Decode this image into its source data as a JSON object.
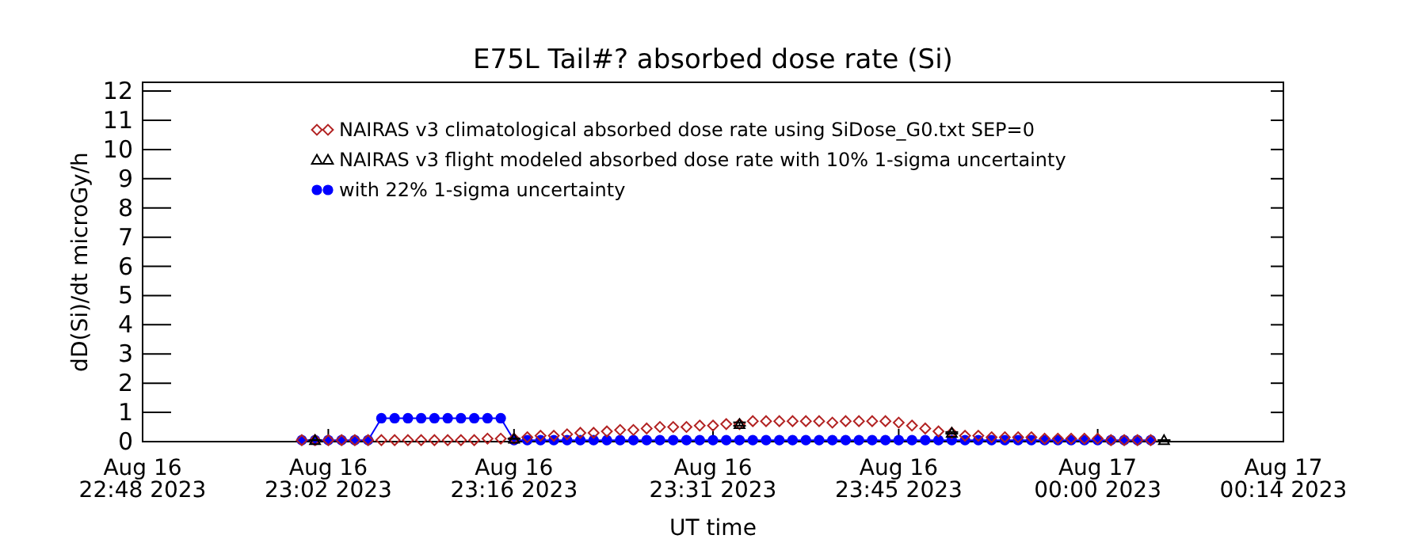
{
  "chart_data": {
    "type": "line",
    "title": "E75L Tail#? absorbed dose rate (Si)",
    "xlabel": "UT time",
    "ylabel": "dD(Si)/dt microGy/h",
    "x": [
      "2023-08-16T23:00",
      "2023-08-16T23:01",
      "2023-08-16T23:02",
      "2023-08-16T23:03",
      "2023-08-16T23:04",
      "2023-08-16T23:05",
      "2023-08-16T23:06",
      "2023-08-16T23:07",
      "2023-08-16T23:08",
      "2023-08-16T23:09",
      "2023-08-16T23:10",
      "2023-08-16T23:11",
      "2023-08-16T23:12",
      "2023-08-16T23:13",
      "2023-08-16T23:14",
      "2023-08-16T23:15",
      "2023-08-16T23:16",
      "2023-08-16T23:17",
      "2023-08-16T23:18",
      "2023-08-16T23:19",
      "2023-08-16T23:20",
      "2023-08-16T23:21",
      "2023-08-16T23:22",
      "2023-08-16T23:23",
      "2023-08-16T23:24",
      "2023-08-16T23:25",
      "2023-08-16T23:26",
      "2023-08-16T23:27",
      "2023-08-16T23:28",
      "2023-08-16T23:29",
      "2023-08-16T23:30",
      "2023-08-16T23:31",
      "2023-08-16T23:32",
      "2023-08-16T23:33",
      "2023-08-16T23:34",
      "2023-08-16T23:35",
      "2023-08-16T23:36",
      "2023-08-16T23:37",
      "2023-08-16T23:38",
      "2023-08-16T23:39",
      "2023-08-16T23:40",
      "2023-08-16T23:41",
      "2023-08-16T23:42",
      "2023-08-16T23:43",
      "2023-08-16T23:44",
      "2023-08-16T23:45",
      "2023-08-16T23:46",
      "2023-08-16T23:47",
      "2023-08-16T23:48",
      "2023-08-16T23:49",
      "2023-08-16T23:50",
      "2023-08-16T23:51",
      "2023-08-16T23:52",
      "2023-08-16T23:53",
      "2023-08-16T23:54",
      "2023-08-16T23:55",
      "2023-08-16T23:56",
      "2023-08-16T23:57",
      "2023-08-16T23:58",
      "2023-08-16T23:59",
      "2023-08-17T00:00",
      "2023-08-17T00:01",
      "2023-08-17T00:02",
      "2023-08-17T00:03",
      "2023-08-17T00:04"
    ],
    "xlim": [
      "2023-08-16T22:48",
      "2023-08-17T00:14"
    ],
    "xticks": [
      {
        "value": "2023-08-16T22:48",
        "label": "Aug 16\n22:48 2023"
      },
      {
        "value": "2023-08-16T23:02",
        "label": "Aug 16\n23:02 2023"
      },
      {
        "value": "2023-08-16T23:16",
        "label": "Aug 16\n23:16 2023"
      },
      {
        "value": "2023-08-16T23:31",
        "label": "Aug 16\n23:31 2023"
      },
      {
        "value": "2023-08-16T23:45",
        "label": "Aug 16\n23:45 2023"
      },
      {
        "value": "2023-08-17T00:00",
        "label": "Aug 17\n00:00 2023"
      },
      {
        "value": "2023-08-17T00:14",
        "label": "Aug 17\n00:14 2023"
      }
    ],
    "ylim": [
      0,
      12.3
    ],
    "yticks": [
      0,
      1,
      2,
      3,
      4,
      5,
      6,
      7,
      8,
      9,
      10,
      11,
      12
    ],
    "legend": "top",
    "series": [
      {
        "name": "NAIRAS v3 climatological absorbed dose rate using SiDose_G0.txt SEP=0",
        "type": "scatter",
        "marker": "diamond",
        "color": "#b22222",
        "values": [
          0.05,
          0.05,
          0.05,
          0.05,
          0.05,
          0.05,
          0.05,
          0.05,
          0.05,
          0.05,
          0.05,
          0.05,
          0.05,
          0.05,
          0.1,
          0.1,
          0.1,
          0.15,
          0.2,
          0.2,
          0.25,
          0.3,
          0.3,
          0.35,
          0.4,
          0.4,
          0.45,
          0.5,
          0.5,
          0.5,
          0.55,
          0.55,
          0.6,
          0.6,
          0.7,
          0.7,
          0.7,
          0.7,
          0.7,
          0.7,
          0.65,
          0.7,
          0.7,
          0.7,
          0.7,
          0.65,
          0.55,
          0.45,
          0.35,
          0.3,
          0.2,
          0.2,
          0.15,
          0.15,
          0.15,
          0.15,
          0.1,
          0.1,
          0.1,
          0.1,
          0.1,
          0.05,
          0.05,
          0.05,
          0.05
        ]
      },
      {
        "name": "NAIRAS v3 flight modeled absorbed dose rate with 10% 1-sigma uncertainty",
        "type": "scatter",
        "marker": "triangle",
        "color": "#000000",
        "x": [
          "2023-08-16T23:01",
          "2023-08-16T23:16",
          "2023-08-16T23:33",
          "2023-08-16T23:49",
          "2023-08-17T00:05"
        ],
        "values": [
          0.05,
          0.1,
          0.6,
          0.3,
          0.05
        ],
        "errors": [
          0.005,
          0.01,
          0.06,
          0.03,
          0.005
        ]
      },
      {
        "name": "with 22% 1-sigma uncertainty",
        "marker": "circle",
        "color": "#0000ff",
        "values": [
          0.05,
          0.05,
          0.05,
          0.05,
          0.05,
          0.05,
          0.8,
          0.8,
          0.8,
          0.8,
          0.8,
          0.8,
          0.8,
          0.8,
          0.8,
          0.8,
          0.05,
          0.05,
          0.05,
          0.05,
          0.05,
          0.05,
          0.05,
          0.05,
          0.05,
          0.05,
          0.05,
          0.05,
          0.05,
          0.05,
          0.05,
          0.05,
          0.05,
          0.05,
          0.05,
          0.05,
          0.05,
          0.05,
          0.05,
          0.05,
          0.05,
          0.05,
          0.05,
          0.05,
          0.05,
          0.05,
          0.05,
          0.05,
          0.05,
          0.05,
          0.05,
          0.05,
          0.05,
          0.05,
          0.05,
          0.05,
          0.05,
          0.05,
          0.05,
          0.05,
          0.05,
          0.05,
          0.05,
          0.05,
          0.05
        ]
      }
    ]
  }
}
